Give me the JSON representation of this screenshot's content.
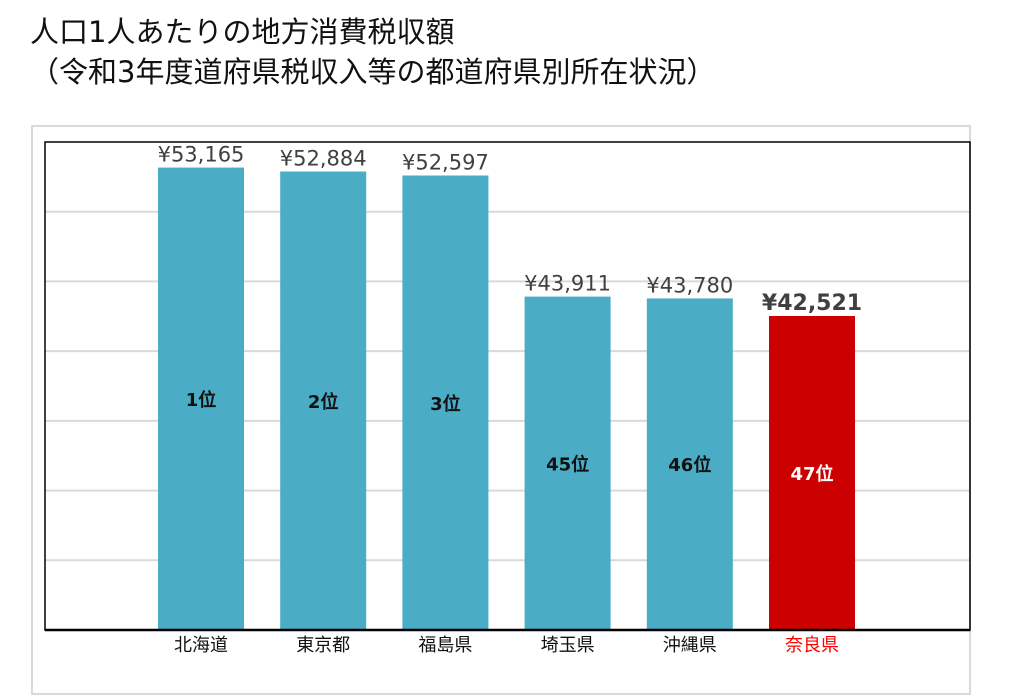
{
  "title_line1": "人口1人あたりの地方消費税収額",
  "title_line2": "（令和3年度道府県税収入等の都道府県別所在状況）",
  "chart_data": {
    "type": "bar",
    "title": "人口1人あたりの地方消費税収額（令和3年度道府県税収入等の都道府県別所在状況）",
    "categories": [
      "北海道",
      "東京都",
      "福島県",
      "埼玉県",
      "沖縄県",
      "奈良県"
    ],
    "values": [
      53165,
      52884,
      52597,
      43911,
      43780,
      42521
    ],
    "value_labels": [
      "¥53,165",
      "¥52,884",
      "¥52,597",
      "¥43,911",
      "¥43,780",
      "¥42,521"
    ],
    "rank_labels": [
      "1位",
      "2位",
      "3位",
      "45位",
      "46位",
      "47位"
    ],
    "highlight_index": 5,
    "colors": {
      "bar": "#4bacc6",
      "highlight": "#cc0000",
      "highlight_label": "#ff0000",
      "grid": "#d9d9d9"
    },
    "ylim": [
      20000,
      55000
    ],
    "ytick_step": 5000,
    "y_tick_labels_shown": false,
    "grid": true,
    "xlabel": "",
    "ylabel": ""
  }
}
